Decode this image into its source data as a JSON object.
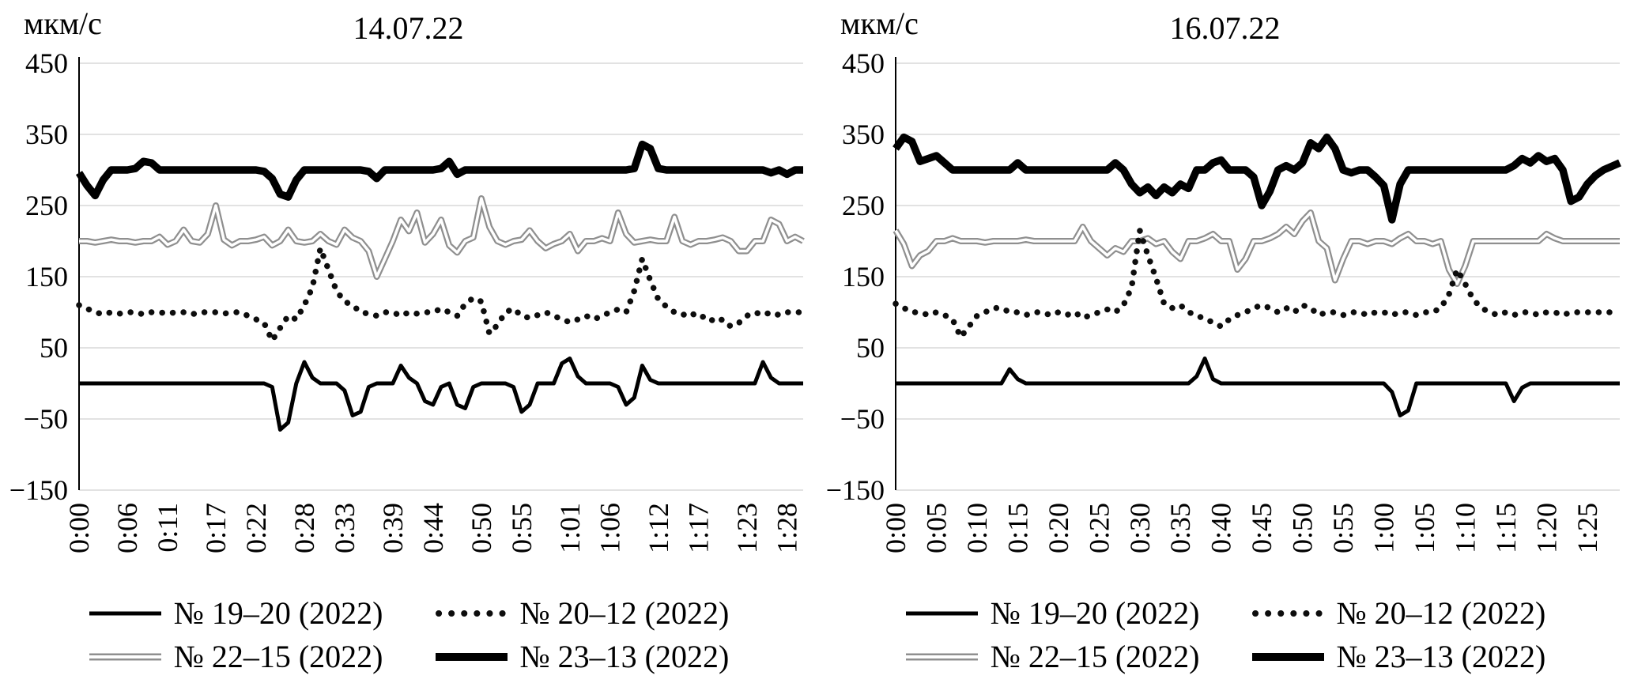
{
  "colors": {
    "background": "#ffffff",
    "gridline": "#d9d9d9",
    "series_black": "#000000",
    "series_gray": "#8f8f8f"
  },
  "chart_data": [
    {
      "type": "line",
      "title": "14.07.22",
      "ylabel": "мкм/с",
      "ylim": [
        -150,
        450
      ],
      "grid": true,
      "legend_position": "bottom",
      "yticks": [
        450,
        350,
        250,
        150,
        50,
        -50,
        -150
      ],
      "ytick_labels": [
        "450",
        "350",
        "250",
        "150",
        "50",
        "−50",
        "−150"
      ],
      "xtick_labels": [
        "0:00",
        "0:06",
        "0:11",
        "0:17",
        "0:22",
        "0:28",
        "0:33",
        "0:39",
        "0:44",
        "0:50",
        "0:55",
        "1:01",
        "1:06",
        "1:12",
        "1:17",
        "1:23",
        "1:28"
      ],
      "xtick_minutes": [
        0,
        6,
        11,
        17,
        22,
        28,
        33,
        39,
        44,
        50,
        55,
        61,
        66,
        72,
        77,
        83,
        88
      ],
      "series": [
        {
          "id": "no-19-20",
          "name": "№ 19–20 (2022)",
          "style": "solid-medium",
          "color": "#000000",
          "values": [
            0,
            0,
            0,
            0,
            0,
            0,
            0,
            0,
            0,
            0,
            0,
            0,
            0,
            0,
            0,
            0,
            0,
            0,
            0,
            0,
            0,
            0,
            0,
            0,
            -5,
            -65,
            -55,
            0,
            30,
            8,
            0,
            0,
            0,
            -10,
            -45,
            -40,
            -5,
            0,
            0,
            0,
            25,
            8,
            0,
            -25,
            -30,
            -5,
            0,
            -30,
            -35,
            -5,
            0,
            0,
            0,
            0,
            -5,
            -40,
            -30,
            0,
            0,
            0,
            28,
            35,
            10,
            0,
            0,
            0,
            0,
            -5,
            -30,
            -20,
            25,
            5,
            0,
            0,
            0,
            0,
            0,
            0,
            0,
            0,
            0,
            0,
            0,
            0,
            0,
            30,
            8,
            0,
            0,
            0,
            0
          ]
        },
        {
          "id": "no-20-12",
          "name": "№ 20–12 (2022)",
          "style": "dotted",
          "color": "#0d0d0d",
          "values": [
            110,
            105,
            100,
            97,
            100,
            98,
            100,
            100,
            97,
            100,
            100,
            98,
            100,
            100,
            97,
            100,
            100,
            100,
            98,
            100,
            100,
            95,
            90,
            85,
            60,
            78,
            95,
            90,
            110,
            135,
            190,
            160,
            130,
            115,
            110,
            100,
            98,
            95,
            100,
            100,
            95,
            100,
            98,
            100,
            100,
            105,
            100,
            95,
            112,
            120,
            115,
            70,
            82,
            100,
            105,
            95,
            92,
            96,
            100,
            95,
            90,
            86,
            90,
            95,
            90,
            95,
            100,
            104,
            100,
            130,
            175,
            145,
            118,
            108,
            100,
            96,
            100,
            92,
            95,
            86,
            90,
            80,
            85,
            95,
            100,
            96,
            100,
            96,
            100,
            100,
            100
          ]
        },
        {
          "id": "no-22-15",
          "name": "№ 22–15 (2022)",
          "style": "double-gray",
          "color": "#8f8f8f",
          "values": [
            200,
            200,
            198,
            200,
            202,
            200,
            200,
            198,
            200,
            200,
            206,
            195,
            200,
            216,
            200,
            198,
            210,
            250,
            202,
            194,
            200,
            200,
            202,
            206,
            194,
            200,
            216,
            200,
            198,
            200,
            210,
            200,
            195,
            216,
            205,
            200,
            186,
            150,
            175,
            200,
            230,
            214,
            240,
            198,
            210,
            230,
            194,
            184,
            200,
            205,
            260,
            220,
            200,
            195,
            200,
            202,
            215,
            200,
            190,
            196,
            200,
            210,
            186,
            200,
            200,
            204,
            200,
            240,
            210,
            198,
            200,
            202,
            200,
            200,
            234,
            200,
            195,
            200,
            200,
            202,
            205,
            200,
            186,
            186,
            200,
            200,
            230,
            224,
            200,
            206,
            200
          ]
        },
        {
          "id": "no-23-13",
          "name": "№ 23–13 (2022)",
          "style": "solid-thick",
          "color": "#000000",
          "values": [
            296,
            278,
            264,
            286,
            300,
            300,
            300,
            302,
            312,
            310,
            300,
            300,
            300,
            300,
            300,
            300,
            300,
            300,
            300,
            300,
            300,
            300,
            300,
            298,
            288,
            266,
            262,
            286,
            300,
            300,
            300,
            300,
            300,
            300,
            300,
            300,
            298,
            288,
            300,
            300,
            300,
            300,
            300,
            300,
            300,
            302,
            312,
            294,
            300,
            300,
            300,
            300,
            300,
            300,
            300,
            300,
            300,
            300,
            300,
            300,
            300,
            300,
            300,
            300,
            300,
            300,
            300,
            300,
            300,
            302,
            336,
            330,
            302,
            300,
            300,
            300,
            300,
            300,
            300,
            300,
            300,
            300,
            300,
            300,
            300,
            300,
            296,
            300,
            294,
            300,
            300
          ]
        }
      ]
    },
    {
      "type": "line",
      "title": "16.07.22",
      "ylabel": "мкм/с",
      "ylim": [
        -150,
        450
      ],
      "grid": true,
      "legend_position": "bottom",
      "yticks": [
        450,
        350,
        250,
        150,
        50,
        -50,
        -150
      ],
      "ytick_labels": [
        "450",
        "350",
        "250",
        "150",
        "50",
        "−50",
        "−150"
      ],
      "xtick_labels": [
        "0:00",
        "0:05",
        "0:10",
        "0:15",
        "0:20",
        "0:25",
        "0:30",
        "0:35",
        "0:40",
        "0:45",
        "0:50",
        "0:55",
        "1:00",
        "1:05",
        "1:10",
        "1:15",
        "1:20",
        "1:25"
      ],
      "xtick_minutes": [
        0,
        5,
        10,
        15,
        20,
        25,
        30,
        35,
        40,
        45,
        50,
        55,
        60,
        65,
        70,
        75,
        80,
        85
      ],
      "series": [
        {
          "id": "no-19-20",
          "name": "№ 19–20 (2022)",
          "style": "solid-medium",
          "color": "#000000",
          "values": [
            0,
            0,
            0,
            0,
            0,
            0,
            0,
            0,
            0,
            0,
            0,
            0,
            0,
            0,
            20,
            6,
            0,
            0,
            0,
            0,
            0,
            0,
            0,
            0,
            0,
            0,
            0,
            0,
            0,
            0,
            0,
            0,
            0,
            0,
            0,
            0,
            0,
            10,
            35,
            6,
            0,
            0,
            0,
            0,
            0,
            0,
            0,
            0,
            0,
            0,
            0,
            0,
            0,
            0,
            0,
            0,
            0,
            0,
            0,
            0,
            0,
            -12,
            -45,
            -38,
            0,
            0,
            0,
            0,
            0,
            0,
            0,
            0,
            0,
            0,
            0,
            0,
            -25,
            -6,
            0,
            0,
            0,
            0,
            0,
            0,
            0,
            0,
            0,
            0,
            0,
            0
          ]
        },
        {
          "id": "no-20-12",
          "name": "№ 20–12 (2022)",
          "style": "dotted",
          "color": "#0d0d0d",
          "values": [
            112,
            106,
            100,
            100,
            96,
            100,
            96,
            90,
            65,
            80,
            95,
            100,
            106,
            106,
            100,
            100,
            96,
            100,
            100,
            96,
            100,
            96,
            100,
            92,
            96,
            100,
            104,
            100,
            110,
            135,
            215,
            180,
            148,
            112,
            106,
            110,
            100,
            96,
            90,
            86,
            80,
            90,
            96,
            100,
            106,
            110,
            106,
            100,
            106,
            100,
            110,
            106,
            96,
            100,
            100,
            96,
            100,
            100,
            96,
            100,
            100,
            96,
            100,
            100,
            96,
            100,
            100,
            106,
            125,
            160,
            140,
            118,
            106,
            100,
            96,
            100,
            96,
            100,
            100,
            96,
            100,
            100,
            96,
            100,
            100,
            100,
            100,
            100,
            100,
            100
          ]
        },
        {
          "id": "no-22-15",
          "name": "№ 22–15 (2022)",
          "style": "double-gray",
          "color": "#8f8f8f",
          "values": [
            215,
            196,
            165,
            180,
            186,
            200,
            200,
            204,
            200,
            200,
            200,
            198,
            200,
            200,
            200,
            200,
            202,
            200,
            200,
            200,
            200,
            200,
            200,
            220,
            200,
            190,
            180,
            190,
            185,
            200,
            200,
            204,
            196,
            200,
            185,
            175,
            200,
            200,
            204,
            210,
            200,
            200,
            160,
            175,
            200,
            200,
            204,
            210,
            220,
            210,
            228,
            240,
            200,
            190,
            145,
            175,
            200,
            200,
            196,
            200,
            200,
            196,
            204,
            210,
            200,
            200,
            196,
            200,
            160,
            140,
            165,
            200,
            200,
            200,
            200,
            200,
            200,
            200,
            200,
            200,
            210,
            204,
            200,
            200,
            200,
            200,
            200,
            200,
            200,
            200
          ]
        },
        {
          "id": "no-23-13",
          "name": "№ 23–13 (2022)",
          "style": "solid-thick",
          "color": "#000000",
          "values": [
            330,
            346,
            340,
            312,
            316,
            320,
            310,
            300,
            300,
            300,
            300,
            300,
            300,
            300,
            300,
            310,
            300,
            300,
            300,
            300,
            300,
            300,
            300,
            300,
            300,
            300,
            300,
            310,
            300,
            280,
            268,
            276,
            264,
            276,
            268,
            280,
            274,
            300,
            300,
            310,
            314,
            300,
            300,
            300,
            290,
            250,
            270,
            300,
            306,
            300,
            310,
            338,
            330,
            346,
            330,
            300,
            296,
            300,
            300,
            290,
            278,
            230,
            280,
            300,
            300,
            300,
            300,
            300,
            300,
            300,
            300,
            300,
            300,
            300,
            300,
            300,
            306,
            316,
            310,
            320,
            312,
            316,
            300,
            256,
            262,
            280,
            292,
            300,
            305,
            310
          ]
        }
      ]
    }
  ]
}
